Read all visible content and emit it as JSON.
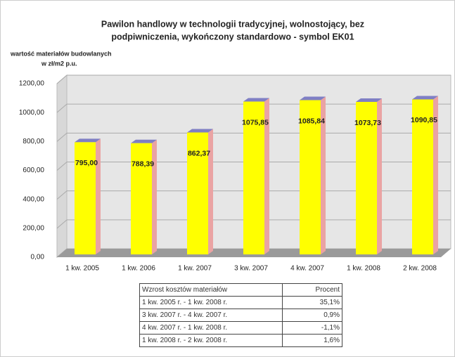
{
  "chart_data": {
    "type": "bar",
    "title": [
      "Pawilon handlowy w technologii tradycyjnej, wolnostojący, bez",
      "podpiwniczenia, wykończony standardowo - symbol EK01"
    ],
    "y_label": [
      "wartość materiałów budowlanych",
      "w zł/m2 p.u."
    ],
    "categories": [
      "1 kw. 2005",
      "1 kw. 2006",
      "1 kw. 2007",
      "3 kw. 2007",
      "4 kw. 2007",
      "1 kw. 2008",
      "2 kw. 2008"
    ],
    "values": [
      795.0,
      788.39,
      862.37,
      1075.85,
      1085.84,
      1073.73,
      1090.85
    ],
    "value_labels": [
      "795,00",
      "788,39",
      "862,37",
      "1075,85",
      "1085,84",
      "1073,73",
      "1090,85"
    ],
    "color": "#ffff00",
    "ylim": [
      0,
      1200
    ],
    "yticks": [
      {
        "value": 0,
        "label": "0,00"
      },
      {
        "value": 200,
        "label": "200,00"
      },
      {
        "value": 400,
        "label": "400,00"
      },
      {
        "value": 600,
        "label": "600,00"
      },
      {
        "value": 800,
        "label": "800,00"
      },
      {
        "value": 1000,
        "label": "1000,00"
      },
      {
        "value": 1200,
        "label": "1200,00"
      }
    ],
    "grid": true
  },
  "table": {
    "header": [
      "Wzrost kosztów materiałów",
      "Procent"
    ],
    "rows": [
      [
        "1 kw. 2005 r. - 1 kw. 2008 r.",
        "35,1%"
      ],
      [
        "3 kw. 2007 r. - 4 kw. 2007 r.",
        "0,9%"
      ],
      [
        "4 kw. 2007 r. - 1 kw. 2008 r.",
        "-1,1%"
      ],
      [
        "1 kw. 2008 r. - 2 kw. 2008 r.",
        "1,6%"
      ]
    ]
  }
}
